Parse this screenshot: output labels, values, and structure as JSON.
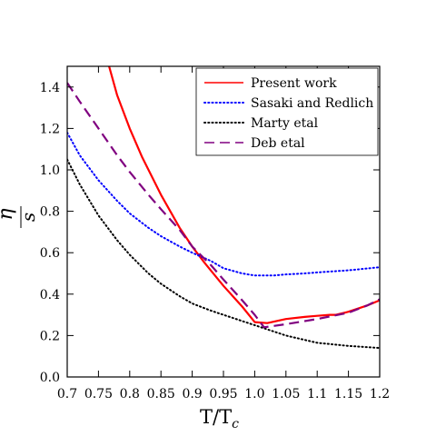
{
  "chart_data": {
    "type": "line",
    "xlabel_main": "T/T",
    "xlabel_sub": "c",
    "ylabel_num": "η",
    "ylabel_den": "s",
    "xlim": [
      0.7,
      1.2
    ],
    "ylim": [
      0.0,
      1.5
    ],
    "x_ticks": [
      "0.7",
      "0.75",
      "0.8",
      "0.85",
      "0.9",
      "0.95",
      "1.0",
      "1.05",
      "1.1",
      "1.15",
      "1.2"
    ],
    "x_tick_values": [
      0.7,
      0.75,
      0.8,
      0.85,
      0.9,
      0.95,
      1.0,
      1.05,
      1.1,
      1.15,
      1.2
    ],
    "y_ticks": [
      "0.0",
      "0.2",
      "0.4",
      "0.6",
      "0.8",
      "1.0",
      "1.2",
      "1.4"
    ],
    "y_tick_values": [
      0.0,
      0.2,
      0.4,
      0.6,
      0.8,
      1.0,
      1.2,
      1.4
    ],
    "grid": false,
    "legend_position": "top-right",
    "series": [
      {
        "name": "Present work",
        "color": "#ff0000",
        "style": "solid",
        "x": [
          0.767,
          0.78,
          0.8,
          0.82,
          0.85,
          0.88,
          0.9,
          0.92,
          0.95,
          0.98,
          1.0,
          1.02,
          1.05,
          1.08,
          1.1,
          1.12,
          1.13,
          1.15,
          1.18,
          1.2
        ],
        "y": [
          1.5,
          1.36,
          1.2,
          1.06,
          0.88,
          0.72,
          0.63,
          0.55,
          0.44,
          0.34,
          0.265,
          0.26,
          0.28,
          0.29,
          0.295,
          0.3,
          0.3,
          0.315,
          0.345,
          0.37
        ]
      },
      {
        "name": "Sasaki and Redlich",
        "color": "#0000ff",
        "style": "dotted",
        "x": [
          0.7,
          0.72,
          0.75,
          0.78,
          0.8,
          0.83,
          0.85,
          0.88,
          0.9,
          0.93,
          0.95,
          0.98,
          1.0,
          1.03,
          1.05,
          1.08,
          1.1,
          1.15,
          1.2
        ],
        "y": [
          1.18,
          1.07,
          0.95,
          0.85,
          0.79,
          0.72,
          0.68,
          0.63,
          0.6,
          0.56,
          0.525,
          0.5,
          0.49,
          0.49,
          0.495,
          0.5,
          0.505,
          0.515,
          0.53
        ]
      },
      {
        "name": "Marty etal",
        "color": "#000000",
        "style": "dotted",
        "x": [
          0.7,
          0.72,
          0.75,
          0.78,
          0.8,
          0.83,
          0.85,
          0.88,
          0.9,
          0.93,
          0.95,
          1.0,
          1.05,
          1.1,
          1.15,
          1.2
        ],
        "y": [
          1.05,
          0.93,
          0.78,
          0.66,
          0.59,
          0.5,
          0.45,
          0.39,
          0.355,
          0.32,
          0.3,
          0.25,
          0.2,
          0.165,
          0.15,
          0.14
        ]
      },
      {
        "name": "Deb etal",
        "color": "#800080",
        "style": "dashed",
        "x": [
          0.7,
          0.72,
          0.75,
          0.78,
          0.8,
          0.83,
          0.85,
          0.88,
          0.9,
          0.93,
          0.95,
          0.98,
          1.0,
          1.015,
          1.05,
          1.1,
          1.15,
          1.18,
          1.2
        ],
        "y": [
          1.42,
          1.33,
          1.2,
          1.07,
          0.99,
          0.88,
          0.81,
          0.71,
          0.63,
          0.54,
          0.47,
          0.37,
          0.3,
          0.24,
          0.255,
          0.28,
          0.31,
          0.345,
          0.375
        ]
      }
    ]
  }
}
